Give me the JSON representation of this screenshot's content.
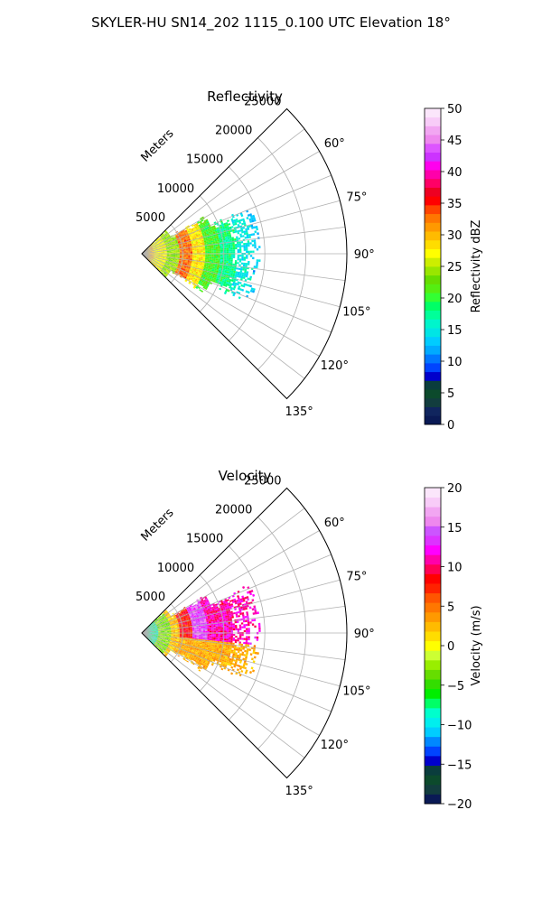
{
  "title": "SKYLER-HU  SN14_202  1115_0.100 UTC Elevation 18°",
  "chart_data": [
    {
      "type": "heatmap",
      "projection": "polar-sector",
      "title": "Reflectivity",
      "range_label": "Meters",
      "range_ticks": [
        5000,
        10000,
        15000,
        20000,
        25000
      ],
      "range_tick_labels": [
        "5000",
        "10000",
        "15000",
        "20000",
        "25000"
      ],
      "rmax": 25000,
      "theta_range_deg": [
        45,
        135
      ],
      "theta_ticks": [
        60,
        75,
        90,
        105,
        120,
        135
      ],
      "theta_tick_labels": [
        "60°",
        "75°",
        "90°",
        "105°",
        "120°",
        "135°"
      ],
      "grid": true,
      "colorbar": {
        "label": "Reflectivity dBZ",
        "vmin": 0,
        "vmax": 50,
        "ticks": [
          0,
          5,
          10,
          15,
          20,
          25,
          30,
          35,
          40,
          45,
          50
        ],
        "tick_labels": [
          "0",
          "5",
          "10",
          "15",
          "20",
          "25",
          "30",
          "35",
          "40",
          "45",
          "50"
        ],
        "colors": [
          "#0a1a55",
          "#10255e",
          "#123d3e",
          "#0c4a2c",
          "#0a3d3d",
          "#0000cc",
          "#0044ff",
          "#0077ff",
          "#00aaff",
          "#00ccff",
          "#00e5e5",
          "#00f5cc",
          "#00ff99",
          "#00ff66",
          "#33ff33",
          "#55ee11",
          "#66dd00",
          "#99e600",
          "#ccee00",
          "#ffff00",
          "#ffdd00",
          "#ffbb00",
          "#ff9900",
          "#ff7700",
          "#ff4400",
          "#ff0000",
          "#ee0022",
          "#ff0066",
          "#ff00aa",
          "#ff00ee",
          "#cc33ff",
          "#dd55ff",
          "#ee88ee",
          "#f2a6f2",
          "#f8ccf8",
          "#fbe6fb"
        ]
      },
      "field": [
        {
          "r": [
            200,
            1500
          ],
          "value": 30
        },
        {
          "r": [
            1500,
            3000
          ],
          "value": 27
        },
        {
          "r": [
            3000,
            4500
          ],
          "value": 24
        },
        {
          "r": [
            4500,
            6000
          ],
          "value": 33
        },
        {
          "r": [
            6000,
            7500
          ],
          "value": 28
        },
        {
          "r": [
            7500,
            9500
          ],
          "value": 21
        },
        {
          "r": [
            9500,
            11500
          ],
          "value": 18
        },
        {
          "r": [
            11500,
            13500
          ],
          "value": 15
        },
        {
          "r": [
            13500,
            14500
          ],
          "value": 13
        }
      ],
      "data_theta_deg": [
        70,
        110
      ]
    },
    {
      "type": "heatmap",
      "projection": "polar-sector",
      "title": "Velocity",
      "range_label": "Meters",
      "range_ticks": [
        5000,
        10000,
        15000,
        20000,
        25000
      ],
      "range_tick_labels": [
        "5000",
        "10000",
        "15000",
        "20000",
        "25000"
      ],
      "rmax": 25000,
      "theta_range_deg": [
        45,
        135
      ],
      "theta_ticks": [
        60,
        75,
        90,
        105,
        120,
        135
      ],
      "theta_tick_labels": [
        "60°",
        "75°",
        "90°",
        "105°",
        "120°",
        "135°"
      ],
      "grid": true,
      "colorbar": {
        "label": "Velocity (m/s)",
        "vmin": -20,
        "vmax": 20,
        "ticks": [
          -20,
          -15,
          -10,
          -5,
          0,
          5,
          10,
          15,
          20
        ],
        "tick_labels": [
          "−20",
          "−15",
          "−10",
          "−5",
          "0",
          "5",
          "10",
          "15",
          "20"
        ],
        "colors": [
          "#0a1a55",
          "#123d3e",
          "#0c4a2c",
          "#0a3d3d",
          "#0000cc",
          "#0044ff",
          "#0088ff",
          "#00ccff",
          "#00eeee",
          "#00ffcc",
          "#00ff66",
          "#00ee00",
          "#33dd00",
          "#66dd00",
          "#99ee00",
          "#ccff33",
          "#ffff00",
          "#ffdd00",
          "#ffbb00",
          "#ff9900",
          "#ff7700",
          "#ff5500",
          "#ff2200",
          "#ff0000",
          "#ff0055",
          "#ff00aa",
          "#ff00ff",
          "#dd33ff",
          "#cc55ff",
          "#ee88ee",
          "#f2a6f2",
          "#f8ccf8",
          "#fbe6fb"
        ]
      },
      "field": [
        {
          "r": [
            200,
            2000
          ],
          "value": -8
        },
        {
          "r": [
            2000,
            3500
          ],
          "value": -3
        },
        {
          "r": [
            3500,
            4500
          ],
          "value": 2
        },
        {
          "r": [
            4500,
            6000
          ],
          "value": 8
        },
        {
          "r": [
            6000,
            8000
          ],
          "value": 14
        },
        {
          "r": [
            8000,
            11000
          ],
          "value": 11
        },
        {
          "r": [
            11000,
            14500
          ],
          "value": 11
        }
      ],
      "lower_sector_value": 3,
      "data_theta_deg": [
        70,
        110
      ]
    }
  ]
}
